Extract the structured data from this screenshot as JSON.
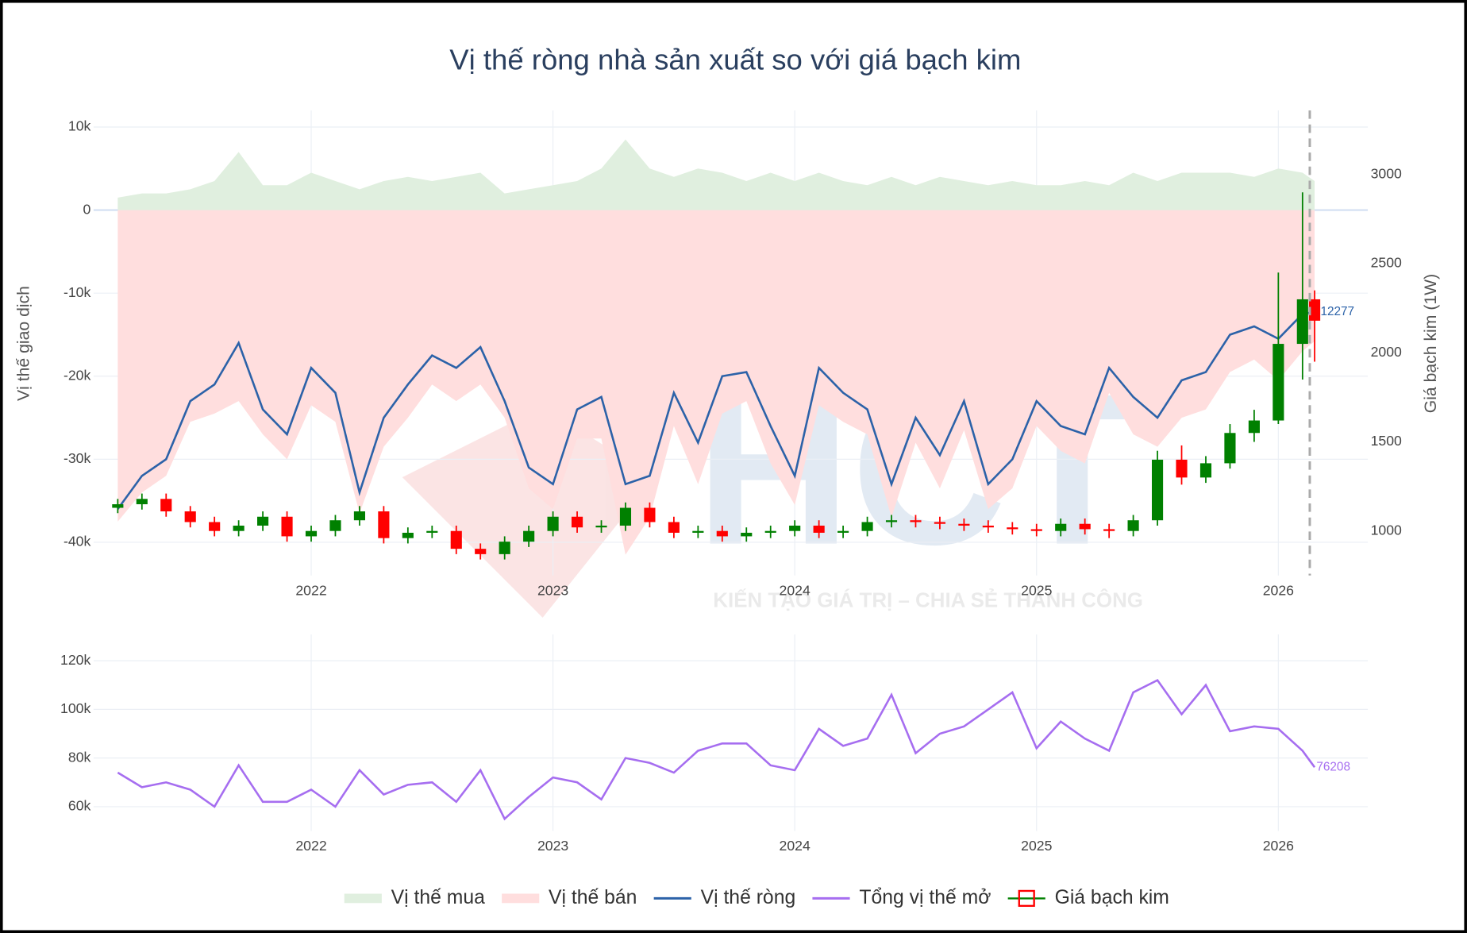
{
  "chart_data": [
    {
      "type": "combo",
      "title": "Vị thế ròng nhà sản xuất so với giá bạch kim",
      "y_label": "Vị thế giao dịch",
      "y2_label": "Giá bạch kim (1W)",
      "watermark": {
        "logo": "HCT",
        "slogan": "KIẾN TẠO GIÁ TRỊ – CHIA SẺ THÀNH CÔNG"
      },
      "x": [
        2021.2,
        2021.3,
        2021.4,
        2021.5,
        2021.6,
        2021.7,
        2021.8,
        2021.9,
        2022.0,
        2022.1,
        2022.2,
        2022.3,
        2022.4,
        2022.5,
        2022.6,
        2022.7,
        2022.8,
        2022.9,
        2023.0,
        2023.1,
        2023.2,
        2023.3,
        2023.4,
        2023.5,
        2023.6,
        2023.7,
        2023.8,
        2023.9,
        2024.0,
        2024.1,
        2024.2,
        2024.3,
        2024.4,
        2024.5,
        2024.6,
        2024.7,
        2024.8,
        2024.9,
        2025.0,
        2025.1,
        2025.2,
        2025.3,
        2025.4,
        2025.5,
        2025.6,
        2025.7,
        2025.8,
        2025.9,
        2026.0,
        2026.1,
        2026.15
      ],
      "xlim": [
        2021.1,
        2026.37
      ],
      "xticks": [
        2022,
        2023,
        2024,
        2025,
        2026
      ],
      "ylim": [
        -44000,
        12000
      ],
      "yticks": [
        {
          "value": -40000,
          "label": "-40k"
        },
        {
          "value": -30000,
          "label": "-30k"
        },
        {
          "value": -20000,
          "label": "-20k"
        },
        {
          "value": -10000,
          "label": "-10k"
        },
        0,
        {
          "value": 10000,
          "label": "10k"
        }
      ],
      "y2lim": [
        750,
        3360
      ],
      "y2ticks": [
        1000,
        1500,
        2000,
        2500,
        3000
      ],
      "vline": 2026.13,
      "grid": true,
      "series": [
        {
          "name": "Vị thế mua",
          "kind": "area",
          "color": "#e0efdf",
          "values": [
            1500,
            2000,
            2000,
            2500,
            3500,
            7000,
            3000,
            3000,
            4500,
            3500,
            2500,
            3500,
            4000,
            3500,
            4000,
            4500,
            2000,
            2500,
            3000,
            3500,
            5000,
            8500,
            5000,
            4000,
            5000,
            4500,
            3500,
            4500,
            3500,
            4500,
            3500,
            3000,
            4000,
            3000,
            4000,
            3500,
            3000,
            3500,
            3000,
            3000,
            3500,
            3000,
            4500,
            3500,
            4500,
            4500,
            4500,
            4000,
            5000,
            4500,
            3500
          ]
        },
        {
          "name": "Vị thế bán",
          "kind": "area",
          "color": "#ffdede",
          "values": [
            -37500,
            -34000,
            -32000,
            -25500,
            -24500,
            -23000,
            -27000,
            -30000,
            -23500,
            -25500,
            -36500,
            -28500,
            -25000,
            -21000,
            -23000,
            -21000,
            -25000,
            -33500,
            -36000,
            -27500,
            -27500,
            -41500,
            -37000,
            -26000,
            -33000,
            -24500,
            -23000,
            -30500,
            -35500,
            -23500,
            -25500,
            -27000,
            -37000,
            -28000,
            -33500,
            -26500,
            -36000,
            -33500,
            -26000,
            -29000,
            -30500,
            -22000,
            -27000,
            -28500,
            -25000,
            -24000,
            -19500,
            -18000,
            -20500,
            -17000,
            -15777
          ]
        },
        {
          "name": "Vị thế ròng",
          "kind": "line",
          "color": "#2c62a8",
          "end_label": "-12277",
          "values": [
            -36000,
            -32000,
            -30000,
            -23000,
            -21000,
            -16000,
            -24000,
            -27000,
            -19000,
            -22000,
            -34000,
            -25000,
            -21000,
            -17500,
            -19000,
            -16500,
            -23000,
            -31000,
            -33000,
            -24000,
            -22500,
            -33000,
            -32000,
            -22000,
            -28000,
            -20000,
            -19500,
            -26000,
            -32000,
            -19000,
            -22000,
            -24000,
            -33000,
            -25000,
            -29500,
            -23000,
            -33000,
            -30000,
            -23000,
            -26000,
            -27000,
            -19000,
            -22500,
            -25000,
            -20500,
            -19500,
            -15000,
            -14000,
            -15500,
            -12500,
            -12277
          ]
        },
        {
          "name": "Giá bạch kim",
          "kind": "candlestick",
          "axis": "y2",
          "increasing_color": "#008000",
          "decreasing_color": "#ff0000",
          "open": [
            1130,
            1150,
            1180,
            1110,
            1050,
            1000,
            1030,
            1080,
            970,
            1000,
            1060,
            1110,
            960,
            990,
            1000,
            900,
            870,
            940,
            1000,
            1080,
            1020,
            1030,
            1130,
            1050,
            990,
            1000,
            970,
            990,
            1000,
            1030,
            990,
            1000,
            1050,
            1060,
            1050,
            1040,
            1030,
            1020,
            1010,
            1000,
            1040,
            1010,
            1000,
            1060,
            1400,
            1300,
            1380,
            1550,
            1620,
            2050,
            2300
          ],
          "high": [
            1180,
            1210,
            1210,
            1140,
            1080,
            1060,
            1110,
            1110,
            1030,
            1090,
            1140,
            1140,
            1020,
            1030,
            1030,
            930,
            970,
            1030,
            1110,
            1110,
            1060,
            1160,
            1160,
            1080,
            1030,
            1030,
            1020,
            1030,
            1060,
            1060,
            1030,
            1080,
            1090,
            1090,
            1080,
            1070,
            1060,
            1050,
            1040,
            1070,
            1070,
            1040,
            1090,
            1450,
            1480,
            1420,
            1600,
            1680,
            2450,
            2900,
            2350
          ],
          "low": [
            1100,
            1120,
            1080,
            1020,
            970,
            970,
            1000,
            940,
            940,
            970,
            1030,
            930,
            930,
            960,
            870,
            840,
            840,
            910,
            970,
            990,
            990,
            1000,
            1020,
            960,
            960,
            940,
            940,
            960,
            970,
            960,
            960,
            970,
            1020,
            1020,
            1010,
            1000,
            990,
            980,
            970,
            970,
            980,
            960,
            970,
            1030,
            1260,
            1270,
            1350,
            1500,
            1600,
            1850,
            1950
          ],
          "close": [
            1150,
            1180,
            1110,
            1050,
            1000,
            1030,
            1080,
            970,
            1000,
            1060,
            1110,
            960,
            990,
            1000,
            900,
            870,
            940,
            1000,
            1080,
            1020,
            1030,
            1130,
            1050,
            990,
            1000,
            970,
            990,
            1000,
            1030,
            990,
            1000,
            1050,
            1060,
            1050,
            1040,
            1030,
            1020,
            1010,
            1000,
            1040,
            1010,
            1000,
            1060,
            1400,
            1300,
            1380,
            1550,
            1620,
            2050,
            2300,
            2180
          ]
        }
      ]
    },
    {
      "type": "line",
      "x": [
        2021.2,
        2021.3,
        2021.4,
        2021.5,
        2021.6,
        2021.7,
        2021.8,
        2021.9,
        2022.0,
        2022.1,
        2022.2,
        2022.3,
        2022.4,
        2022.5,
        2022.6,
        2022.7,
        2022.8,
        2022.9,
        2023.0,
        2023.1,
        2023.2,
        2023.3,
        2023.4,
        2023.5,
        2023.6,
        2023.7,
        2023.8,
        2023.9,
        2024.0,
        2024.1,
        2024.2,
        2024.3,
        2024.4,
        2024.5,
        2024.6,
        2024.7,
        2024.8,
        2024.9,
        2025.0,
        2025.1,
        2025.2,
        2025.3,
        2025.4,
        2025.5,
        2025.6,
        2025.7,
        2025.8,
        2025.9,
        2026.0,
        2026.1,
        2026.15
      ],
      "xlim": [
        2021.1,
        2026.37
      ],
      "xticks": [
        2022,
        2023,
        2024,
        2025,
        2026
      ],
      "ylim": [
        50000,
        130800
      ],
      "yticks": [
        {
          "value": 60000,
          "label": "60k"
        },
        {
          "value": 80000,
          "label": "80k"
        },
        {
          "value": 100000,
          "label": "100k"
        },
        {
          "value": 120000,
          "label": "120k"
        }
      ],
      "grid": true,
      "series": [
        {
          "name": "Tổng vị thế mở",
          "color": "#a66ef0",
          "end_label": "76208",
          "values": [
            74000,
            68000,
            70000,
            67000,
            60000,
            77000,
            62000,
            62000,
            67000,
            60000,
            75000,
            65000,
            69000,
            70000,
            62000,
            75000,
            55000,
            64000,
            72000,
            70000,
            63000,
            80000,
            78000,
            74000,
            83000,
            86000,
            86000,
            77000,
            75000,
            92000,
            85000,
            88000,
            106000,
            82000,
            90000,
            93000,
            100000,
            107000,
            84000,
            95000,
            88000,
            83000,
            107000,
            112000,
            98000,
            110000,
            91000,
            93000,
            92000,
            83000,
            76208
          ]
        }
      ]
    }
  ]
}
